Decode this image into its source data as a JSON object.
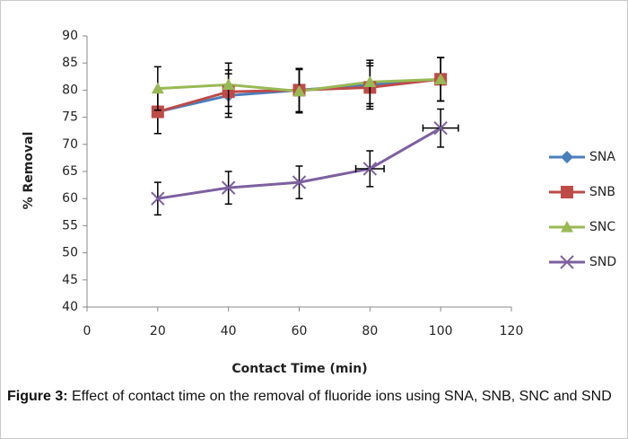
{
  "chart_data": {
    "type": "line",
    "x": [
      20,
      40,
      60,
      80,
      100
    ],
    "xlim": [
      0,
      120
    ],
    "xticks": [
      0,
      20,
      40,
      60,
      80,
      100,
      120
    ],
    "ylim": [
      40,
      90
    ],
    "yticks": [
      40,
      45,
      50,
      55,
      60,
      65,
      70,
      75,
      80,
      85,
      90
    ],
    "xlabel": "Contact Time (min)",
    "ylabel": "% Removal",
    "grid": false,
    "legend": "right",
    "series": [
      {
        "name": "SNA",
        "color": "#4a7ebb",
        "marker": "diamond",
        "values": [
          76,
          79,
          80,
          81,
          82
        ],
        "yerr": [
          4,
          4,
          4,
          4,
          4
        ]
      },
      {
        "name": "SNB",
        "color": "#be4b48",
        "marker": "square",
        "values": [
          76,
          79.7,
          80,
          80.5,
          82
        ],
        "yerr": [
          4,
          4,
          4,
          4,
          4
        ]
      },
      {
        "name": "SNC",
        "color": "#98b954",
        "marker": "triangle",
        "values": [
          80.3,
          81,
          79.8,
          81.5,
          82
        ],
        "yerr": [
          4,
          4,
          4,
          4,
          4
        ]
      },
      {
        "name": "SND",
        "color": "#7d60a0",
        "marker": "x",
        "values": [
          60,
          62,
          63,
          65.5,
          73
        ],
        "yerr": [
          3,
          3,
          3,
          3.3,
          3.5
        ],
        "xerr": [
          0,
          0,
          0,
          4,
          5
        ]
      }
    ]
  },
  "caption": {
    "label": "Figure 3:",
    "text": " Effect of contact time on the removal of fluoride ions using SNA, SNB, SNC and SND"
  }
}
